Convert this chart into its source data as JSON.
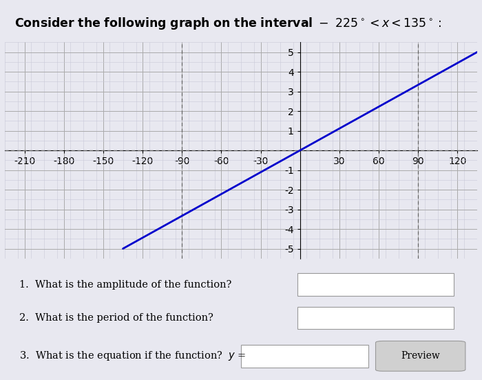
{
  "xlim": [
    -225,
    135
  ],
  "ylim": [
    -5.5,
    5.5
  ],
  "xticks": [
    -210,
    -180,
    -150,
    -120,
    -90,
    -60,
    -30,
    30,
    60,
    90,
    120
  ],
  "yticks": [
    -5,
    -4,
    -3,
    -2,
    -1,
    1,
    2,
    3,
    4,
    5
  ],
  "line_color": "#0000cc",
  "line_width": 2.0,
  "x_start": -135,
  "x_end": 135,
  "background_color": "#e8e8f0",
  "grid_minor_color": "#c8c8d8",
  "grid_major_color": "#aaaaaa",
  "dashed_vlines": [
    -90,
    90
  ],
  "dashed_color": "#666666",
  "fig_width": 7.0,
  "fig_height": 5.51,
  "minor_grid_lw": 0.4,
  "major_grid_lw": 0.7
}
